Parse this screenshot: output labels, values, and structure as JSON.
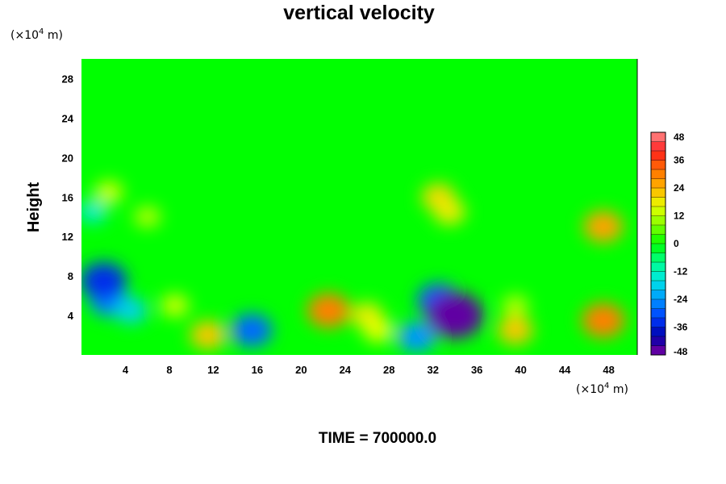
{
  "chart_data": {
    "type": "heatmap",
    "title": "vertical velocity",
    "ylabel": "Height",
    "y_unit_prefix": "(×10",
    "unit_exponent": "4",
    "unit_suffix": " m)",
    "x_unit_prefix": "(×10",
    "x_ticks": [
      "4",
      "8",
      "12",
      "16",
      "20",
      "24",
      "28",
      "32",
      "36",
      "40",
      "44",
      "48"
    ],
    "y_ticks": [
      "4",
      "8",
      "12",
      "16",
      "20",
      "24",
      "28"
    ],
    "xlim": [
      0,
      50.6
    ],
    "ylim": [
      0,
      30
    ],
    "colorbar": {
      "ticks": [
        "48",
        "36",
        "24",
        "12",
        "0",
        "-12",
        "-24",
        "-36",
        "-48"
      ],
      "range": [
        -48,
        48
      ],
      "interval": 4
    },
    "features": [
      {
        "x": 2.5,
        "y": 5.5,
        "value": -26
      },
      {
        "x": 2.0,
        "y": 7.5,
        "value": -34
      },
      {
        "x": 4.5,
        "y": 4.5,
        "value": -18
      },
      {
        "x": 8.5,
        "y": 5.0,
        "value": 14
      },
      {
        "x": 11.5,
        "y": 2.0,
        "value": 22
      },
      {
        "x": 15.5,
        "y": 2.5,
        "value": -28
      },
      {
        "x": 22.5,
        "y": 4.5,
        "value": 30
      },
      {
        "x": 26.0,
        "y": 4.0,
        "value": 18
      },
      {
        "x": 27.0,
        "y": 2.5,
        "value": 16
      },
      {
        "x": 32.5,
        "y": 5.5,
        "value": -30
      },
      {
        "x": 34.0,
        "y": 4.0,
        "value": -46
      },
      {
        "x": 30.5,
        "y": 1.8,
        "value": -24
      },
      {
        "x": 39.5,
        "y": 2.5,
        "value": 22
      },
      {
        "x": 39.5,
        "y": 5.0,
        "value": 12
      },
      {
        "x": 47.5,
        "y": 3.5,
        "value": 30
      },
      {
        "x": 2.5,
        "y": 16.5,
        "value": 14
      },
      {
        "x": 6.0,
        "y": 14.0,
        "value": 12
      },
      {
        "x": 32.5,
        "y": 16.0,
        "value": 20
      },
      {
        "x": 33.5,
        "y": 14.5,
        "value": 18
      },
      {
        "x": 47.5,
        "y": 13.0,
        "value": 26
      },
      {
        "x": 1.0,
        "y": 14.5,
        "value": -14
      }
    ],
    "time_label": "TIME = 700000.0"
  }
}
